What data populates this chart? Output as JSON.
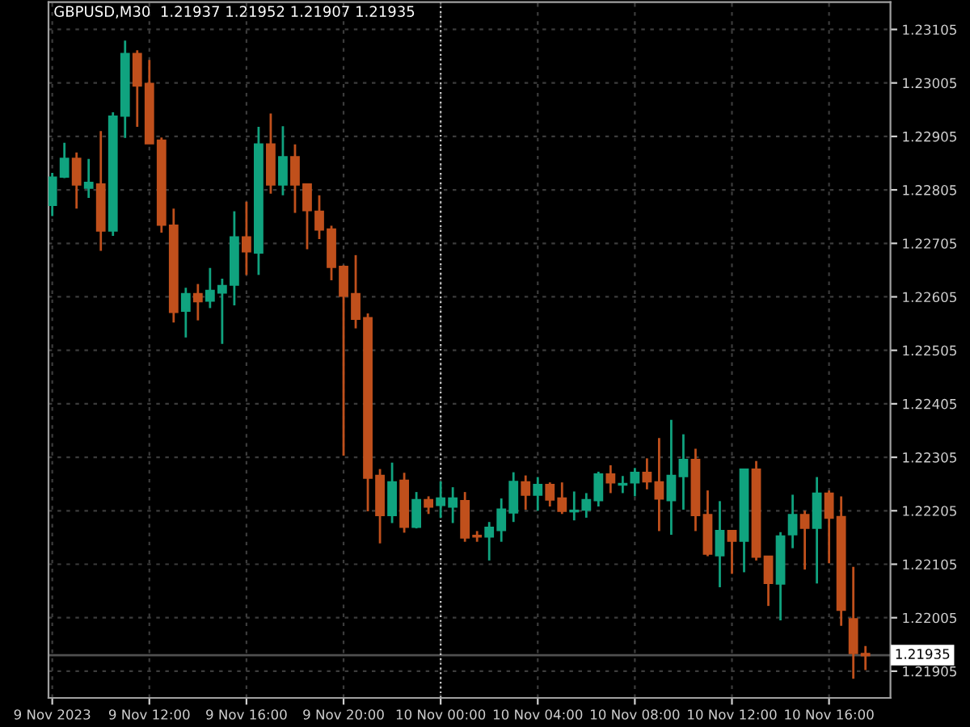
{
  "chart_data": {
    "type": "candlestick",
    "title": "GBPUSD,M30  1.21937 1.21952 1.21907 1.21935",
    "categories": [
      "9 Nov 2023",
      null,
      null,
      null,
      null,
      null,
      null,
      null,
      "9 Nov 12:00",
      null,
      null,
      null,
      null,
      null,
      null,
      null,
      "9 Nov 16:00",
      null,
      null,
      null,
      null,
      null,
      null,
      null,
      "9 Nov 20:00",
      null,
      null,
      null,
      null,
      null,
      null,
      null,
      "10 Nov 00:00",
      null,
      null,
      null,
      null,
      null,
      null,
      null,
      "10 Nov 04:00",
      null,
      null,
      null,
      null,
      null,
      null,
      null,
      "10 Nov 08:00",
      null,
      null,
      null,
      null,
      null,
      null,
      null,
      "10 Nov 12:00",
      null,
      null,
      null,
      null,
      null,
      null,
      null,
      "10 Nov 16:00",
      null,
      null,
      null
    ],
    "ohlc": [
      [
        1.22777,
        1.22837,
        1.22756,
        1.22828
      ],
      [
        1.2283,
        1.22893,
        1.22827,
        1.22863
      ],
      [
        1.22863,
        1.22875,
        1.2277,
        1.22815
      ],
      [
        1.22809,
        1.22863,
        1.2279,
        1.22818
      ],
      [
        1.22815,
        1.22915,
        1.22691,
        1.22729
      ],
      [
        1.22729,
        1.2295,
        1.22719,
        1.22942
      ],
      [
        1.22944,
        1.23084,
        1.22902,
        1.23059
      ],
      [
        1.23059,
        1.23066,
        1.22923,
        1.23
      ],
      [
        1.23003,
        1.23048,
        1.22892,
        1.22892
      ],
      [
        1.22897,
        1.22903,
        1.22725,
        1.2274
      ],
      [
        1.22738,
        1.2277,
        1.22557,
        1.22577
      ],
      [
        1.22579,
        1.22622,
        1.22529,
        1.2261
      ],
      [
        1.2261,
        1.22629,
        1.22561,
        1.22597
      ],
      [
        1.22598,
        1.22659,
        1.22584,
        1.22616
      ],
      [
        1.22613,
        1.22639,
        1.22517,
        1.22625
      ],
      [
        1.22628,
        1.22765,
        1.22589,
        1.22716
      ],
      [
        1.22716,
        1.22783,
        1.22646,
        1.2269
      ],
      [
        1.22688,
        1.22923,
        1.22646,
        1.2289
      ],
      [
        1.2289,
        1.22948,
        1.22798,
        1.22815
      ],
      [
        1.22815,
        1.22924,
        1.22795,
        1.22866
      ],
      [
        1.22866,
        1.2289,
        1.22762,
        1.22815
      ],
      [
        1.22815,
        1.22815,
        1.22694,
        1.22767
      ],
      [
        1.22764,
        1.22795,
        1.22713,
        1.22731
      ],
      [
        1.22731,
        1.22738,
        1.22636,
        1.22661
      ],
      [
        1.22661,
        1.22664,
        1.22308,
        1.22607
      ],
      [
        1.2261,
        1.22683,
        1.22546,
        1.22564
      ],
      [
        1.22565,
        1.22574,
        1.22204,
        1.22267
      ],
      [
        1.2227,
        1.22283,
        1.22144,
        1.22197
      ],
      [
        1.22197,
        1.22295,
        1.22182,
        1.22258
      ],
      [
        1.22261,
        1.22276,
        1.22164,
        1.22175
      ],
      [
        1.22175,
        1.2224,
        1.22172,
        1.22225
      ],
      [
        1.22225,
        1.22232,
        1.22199,
        1.22213
      ],
      [
        1.22216,
        1.2226,
        1.22192,
        1.22228
      ],
      [
        1.22213,
        1.22249,
        1.22182,
        1.22228
      ],
      [
        1.22223,
        1.2224,
        1.22147,
        1.22155
      ],
      [
        1.22158,
        1.22167,
        1.22147,
        1.22157
      ],
      [
        1.22157,
        1.22184,
        1.22112,
        1.22173
      ],
      [
        1.22169,
        1.22228,
        1.22147,
        1.22207
      ],
      [
        1.22202,
        1.22277,
        1.22184,
        1.22259
      ],
      [
        1.22258,
        1.22271,
        1.22207,
        1.22235
      ],
      [
        1.22235,
        1.22268,
        1.22205,
        1.22253
      ],
      [
        1.22253,
        1.22258,
        1.22213,
        1.22226
      ],
      [
        1.22228,
        1.22258,
        1.22199,
        1.22205
      ],
      [
        1.22204,
        1.22241,
        1.22187,
        1.22205
      ],
      [
        1.22207,
        1.22238,
        1.22192,
        1.22225
      ],
      [
        1.22225,
        1.22278,
        1.22213,
        1.22273
      ],
      [
        1.22273,
        1.2229,
        1.22238,
        1.22258
      ],
      [
        1.22254,
        1.2227,
        1.22238,
        1.22255
      ],
      [
        1.22258,
        1.22285,
        1.22232,
        1.22276
      ],
      [
        1.22276,
        1.22303,
        1.22245,
        1.2226
      ],
      [
        1.22258,
        1.22341,
        1.22167,
        1.22228
      ],
      [
        1.22225,
        1.22375,
        1.2216,
        1.2227
      ],
      [
        1.2227,
        1.22348,
        1.22207,
        1.223
      ],
      [
        1.223,
        1.22321,
        1.22167,
        1.22197
      ],
      [
        1.22197,
        1.22243,
        1.2212,
        1.22125
      ],
      [
        1.22122,
        1.22223,
        1.22062,
        1.22167
      ],
      [
        1.22167,
        1.22167,
        1.22087,
        1.22149
      ],
      [
        1.22149,
        1.22282,
        1.2209,
        1.22282
      ],
      [
        1.22282,
        1.22298,
        1.22112,
        1.22119
      ],
      [
        1.22119,
        1.22119,
        1.22027,
        1.2207
      ],
      [
        1.22069,
        1.22165,
        1.22,
        1.22157
      ],
      [
        1.22161,
        1.22235,
        1.22135,
        1.22197
      ],
      [
        1.22197,
        1.22205,
        1.22095,
        1.22173
      ],
      [
        1.22173,
        1.22268,
        1.22069,
        1.22237
      ],
      [
        1.22237,
        1.22243,
        1.22107,
        1.22192
      ],
      [
        1.22193,
        1.22232,
        1.2199,
        1.2202
      ],
      [
        1.22002,
        1.221,
        1.21891,
        1.21939
      ],
      [
        1.21937,
        1.21952,
        1.21907,
        1.21935
      ]
    ],
    "colors": [
      "#10a37f",
      "#10a37f",
      "#c0501c",
      "#10a37f",
      "#c0501c",
      "#10a37f",
      "#10a37f",
      "#c0501c",
      "#c0501c",
      "#c0501c",
      "#c0501c",
      "#10a37f",
      "#c0501c",
      "#10a37f",
      "#10a37f",
      "#10a37f",
      "#c0501c",
      "#10a37f",
      "#c0501c",
      "#10a37f",
      "#c0501c",
      "#c0501c",
      "#c0501c",
      "#c0501c",
      "#c0501c",
      "#c0501c",
      "#c0501c",
      "#c0501c",
      "#10a37f",
      "#c0501c",
      "#10a37f",
      "#c0501c",
      "#10a37f",
      "#10a37f",
      "#c0501c",
      "#c0501c",
      "#10a37f",
      "#10a37f",
      "#10a37f",
      "#c0501c",
      "#10a37f",
      "#c0501c",
      "#c0501c",
      "#10a37f",
      "#10a37f",
      "#10a37f",
      "#c0501c",
      "#10a37f",
      "#10a37f",
      "#c0501c",
      "#c0501c",
      "#10a37f",
      "#10a37f",
      "#c0501c",
      "#c0501c",
      "#10a37f",
      "#c0501c",
      "#10a37f",
      "#c0501c",
      "#c0501c",
      "#10a37f",
      "#10a37f",
      "#c0501c",
      "#10a37f",
      "#c0501c",
      "#c0501c",
      "#c0501c",
      "#c0501c"
    ],
    "ylim": [
      1.21855,
      1.23156
    ],
    "yticks": [
      {
        "value": 1.21905,
        "label": "1.21905"
      },
      {
        "value": 1.22005,
        "label": "1.22005"
      },
      {
        "value": 1.22105,
        "label": "1.22105"
      },
      {
        "value": 1.22205,
        "label": "1.22205"
      },
      {
        "value": 1.22305,
        "label": "1.22305"
      },
      {
        "value": 1.22405,
        "label": "1.22405"
      },
      {
        "value": 1.22505,
        "label": "1.22505"
      },
      {
        "value": 1.22605,
        "label": "1.22605"
      },
      {
        "value": 1.22705,
        "label": "1.22705"
      },
      {
        "value": 1.22805,
        "label": "1.22805"
      },
      {
        "value": 1.22905,
        "label": "1.22905"
      },
      {
        "value": 1.23005,
        "label": "1.23005"
      },
      {
        "value": 1.23105,
        "label": "1.23105"
      }
    ],
    "ref_lines": [
      {
        "axis": "y",
        "value": 1.21935,
        "label": "1.21935",
        "color": "#505050",
        "line_style": "solid"
      },
      {
        "axis": "x",
        "value": "10 Nov 00:00",
        "label": null,
        "color": "#c8c8c8",
        "line_style": "dotted"
      }
    ],
    "grid": true
  }
}
